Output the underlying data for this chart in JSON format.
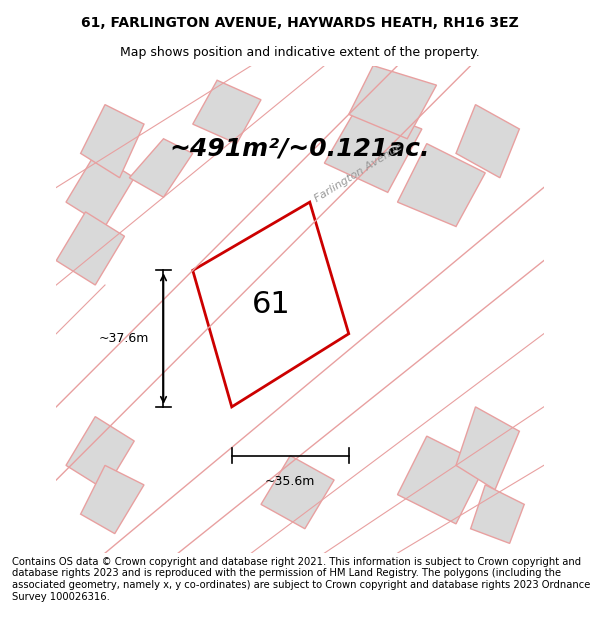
{
  "title_line1": "61, FARLINGTON AVENUE, HAYWARDS HEATH, RH16 3EZ",
  "title_line2": "Map shows position and indicative extent of the property.",
  "area_text": "~491m²/~0.121ac.",
  "label_61": "61",
  "dim_height": "~37.6m",
  "dim_width": "~35.6m",
  "street_name": "Farlington Avenue",
  "footer": "Contains OS data © Crown copyright and database right 2021. This information is subject to Crown copyright and database rights 2023 and is reproduced with the permission of HM Land Registry. The polygons (including the associated geometry, namely x, y co-ordinates) are subject to Crown copyright and database rights 2023 Ordnance Survey 100026316.",
  "bg_color": "#f5f0f0",
  "map_bg": "#f0ebe8",
  "plot_color": "#cc0000",
  "building_fill": "#d9d9d9",
  "building_line": "#e8a0a0",
  "road_line": "#e8a0a0",
  "title_fontsize": 10,
  "subtitle_fontsize": 9,
  "area_fontsize": 18,
  "label_fontsize": 22,
  "footer_fontsize": 7.2
}
